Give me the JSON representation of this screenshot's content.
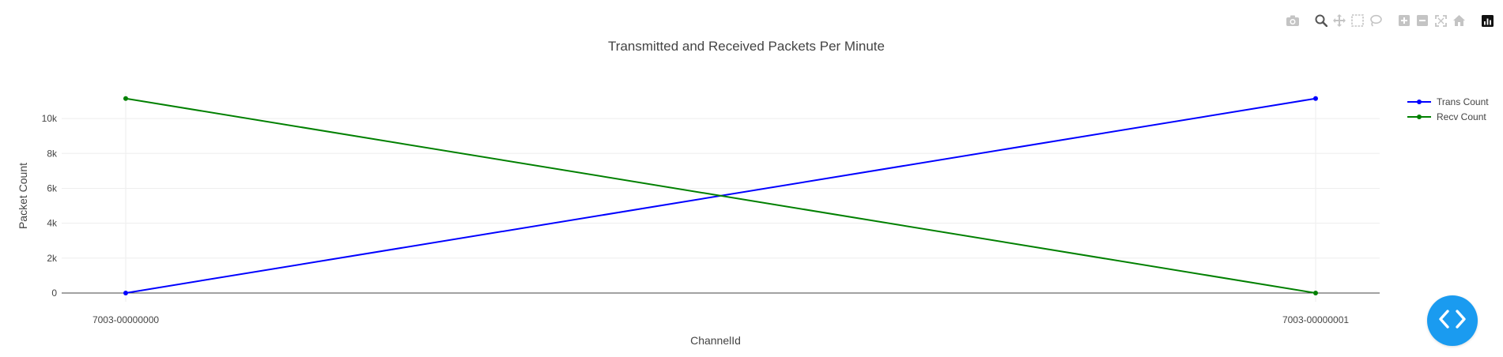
{
  "modebar": {
    "buttons": [
      {
        "name": "camera-icon",
        "group": 1
      },
      {
        "name": "zoom-icon",
        "group": 2
      },
      {
        "name": "pan-icon",
        "group": 2
      },
      {
        "name": "box-select-icon",
        "group": 2
      },
      {
        "name": "lasso-select-icon",
        "group": 2
      },
      {
        "name": "zoom-in-icon",
        "group": 3
      },
      {
        "name": "zoom-out-icon",
        "group": 3
      },
      {
        "name": "autoscale-icon",
        "group": 3
      },
      {
        "name": "reset-axes-icon",
        "group": 3
      },
      {
        "name": "plotly-logo-icon",
        "group": 4
      }
    ]
  },
  "fab": {
    "icon": "code-icon",
    "color": "#1a9bf0"
  },
  "chart_data": {
    "type": "line",
    "title": "Transmitted and Received Packets Per Minute",
    "xlabel": "ChannelId",
    "ylabel": "Packet Count",
    "categories": [
      "7003-00000000",
      "7003-00000001"
    ],
    "ylim": [
      -500,
      11500
    ],
    "yticks": [
      0,
      2000,
      4000,
      6000,
      8000,
      10000
    ],
    "ytick_labels": [
      "0",
      "2k",
      "4k",
      "6k",
      "8k",
      "10k"
    ],
    "grid": true,
    "legend_position": "top-right",
    "series": [
      {
        "name": "Trans Count",
        "color": "#0000ff",
        "values": [
          0,
          11150
        ]
      },
      {
        "name": "Recv Count",
        "color": "#008000",
        "values": [
          11150,
          0
        ]
      }
    ]
  }
}
